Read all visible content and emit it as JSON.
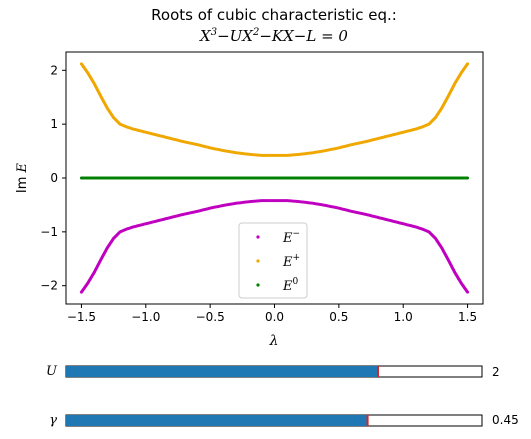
{
  "chart_data": {
    "type": "scatter",
    "title_line1": "Roots of cubic characteristic eq.:",
    "title_line2": {
      "p1": "X",
      "p1sup": "3",
      "p2": "−UX",
      "p2sup": "2",
      "p3": "−KX−L = 0"
    },
    "xlabel": "λ",
    "ylabel": {
      "prefix": "Im ",
      "var": "E"
    },
    "xlim": [
      -1.62,
      1.62
    ],
    "ylim": [
      -2.34,
      2.34
    ],
    "xticks": [
      -1.5,
      -1.0,
      -0.5,
      0.0,
      0.5,
      1.0,
      1.5
    ],
    "xtick_labels": [
      "−1.5",
      "−1.0",
      "−0.5",
      "0.0",
      "0.5",
      "1.0",
      "1.5"
    ],
    "yticks": [
      -2,
      -1,
      0,
      1,
      2
    ],
    "ytick_labels": [
      "−2",
      "−1",
      "0",
      "1",
      "2"
    ],
    "grid": false,
    "legend_position": "lower center",
    "series": [
      {
        "name": "E",
        "name_sup": "−",
        "color": "#c000c0",
        "x": [
          -1.5,
          -1.45,
          -1.4,
          -1.35,
          -1.3,
          -1.25,
          -1.2,
          -1.15,
          -1.1,
          -1.0,
          -0.9,
          -0.8,
          -0.7,
          -0.6,
          -0.5,
          -0.4,
          -0.3,
          -0.2,
          -0.1,
          0.0,
          0.1,
          0.2,
          0.3,
          0.4,
          0.5,
          0.6,
          0.7,
          0.8,
          0.9,
          1.0,
          1.1,
          1.15,
          1.2,
          1.25,
          1.3,
          1.35,
          1.4,
          1.45,
          1.5
        ],
        "y": [
          -2.12,
          -1.95,
          -1.75,
          -1.52,
          -1.3,
          -1.12,
          -1.0,
          -0.95,
          -0.91,
          -0.85,
          -0.79,
          -0.73,
          -0.67,
          -0.62,
          -0.56,
          -0.51,
          -0.47,
          -0.44,
          -0.42,
          -0.42,
          -0.42,
          -0.44,
          -0.47,
          -0.51,
          -0.56,
          -0.62,
          -0.67,
          -0.73,
          -0.79,
          -0.85,
          -0.91,
          -0.95,
          -1.0,
          -1.12,
          -1.3,
          -1.52,
          -1.75,
          -1.95,
          -2.12
        ]
      },
      {
        "name": "E",
        "name_sup": "+",
        "color": "#f0a800",
        "x": [
          -1.5,
          -1.45,
          -1.4,
          -1.35,
          -1.3,
          -1.25,
          -1.2,
          -1.15,
          -1.1,
          -1.0,
          -0.9,
          -0.8,
          -0.7,
          -0.6,
          -0.5,
          -0.4,
          -0.3,
          -0.2,
          -0.1,
          0.0,
          0.1,
          0.2,
          0.3,
          0.4,
          0.5,
          0.6,
          0.7,
          0.8,
          0.9,
          1.0,
          1.1,
          1.15,
          1.2,
          1.25,
          1.3,
          1.35,
          1.4,
          1.45,
          1.5
        ],
        "y": [
          2.12,
          1.95,
          1.75,
          1.52,
          1.3,
          1.12,
          1.0,
          0.95,
          0.91,
          0.85,
          0.79,
          0.73,
          0.67,
          0.62,
          0.56,
          0.51,
          0.47,
          0.44,
          0.42,
          0.42,
          0.42,
          0.44,
          0.47,
          0.51,
          0.56,
          0.62,
          0.67,
          0.73,
          0.79,
          0.85,
          0.91,
          0.95,
          1.0,
          1.12,
          1.3,
          1.52,
          1.75,
          1.95,
          2.12
        ]
      },
      {
        "name": "E",
        "name_sup": "0",
        "color": "#008000",
        "x": [
          -1.5,
          1.5
        ],
        "y": [
          0,
          0
        ]
      }
    ]
  },
  "sliders": [
    {
      "label": "U",
      "value_text": "2",
      "fraction": 0.75,
      "fill_color": "#1f77b4",
      "handle_color": "#d62728"
    },
    {
      "label": "γ",
      "value_text": "0.45",
      "fraction": 0.725,
      "fill_color": "#1f77b4",
      "handle_color": "#d62728"
    }
  ]
}
